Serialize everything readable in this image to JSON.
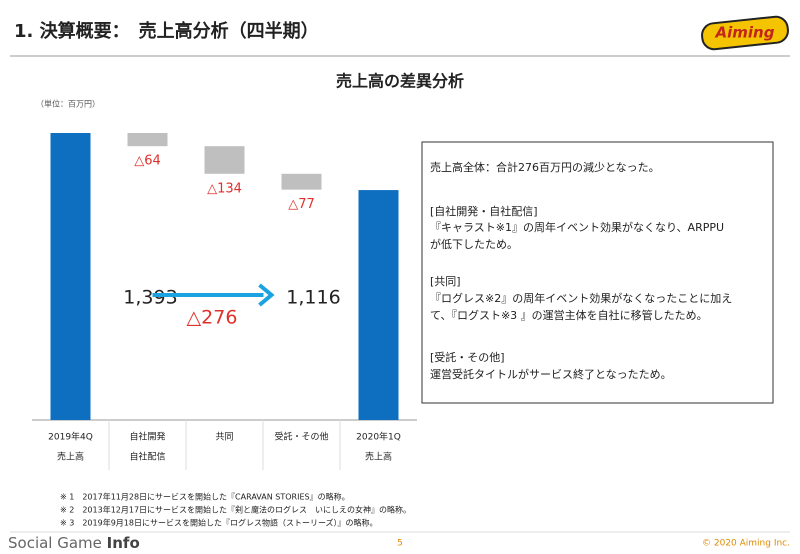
{
  "header": {
    "title": "1. 決算概要：　売上高分析（四半期）",
    "logo": "Aiming"
  },
  "chart_data": {
    "type": "waterfall",
    "title": "売上高の差異分析",
    "unit": "（単位：百万円）",
    "categories": [
      [
        "2019年4Q",
        "売上高"
      ],
      [
        "自社開発",
        "自社配信"
      ],
      [
        "共同"
      ],
      [
        "受託・その他"
      ],
      [
        "2020年1Q",
        "売上高"
      ]
    ],
    "values": [
      1393,
      -64,
      -134,
      -77,
      1116
    ],
    "value_labels": [
      "1,393",
      "△64",
      "△134",
      "△77",
      "1,116"
    ],
    "total_color": "#0e6fc1",
    "delta_color": "#bfbfbf",
    "delta_label_color": "#e0302b",
    "annotation": "△276",
    "arrow_color": "#1aa3e0"
  },
  "notes_box": [
    "売上高全体：合計276百万円の減少となった。",
    "[自社開発・自社配信]",
    "『キャラスト※1』の周年イベント効果がなくなり、ARPPU",
    "が低下したため。",
    "[共同]",
    "『ログレス※2』の周年イベント効果がなくなったことに加え",
    "て、『ログスト※3 』の運営主体を自社に移管したため。",
    "[受託・その他]",
    "運営受託タイトルがサービス終了となったため。"
  ],
  "footnotes": [
    "※ 1　2017年11月28日にサービスを開始した『CARAVAN STORIES』の略称。",
    "※ 2　2013年12月17日にサービスを開始した『剣と魔法のログレス　いにしえの女神』の略称。",
    "※ 3　2019年9月18日にサービスを開始した『ログレス物語（ストーリーズ）』の略称。"
  ],
  "footer": {
    "brand_a": "Social Game ",
    "brand_b": "Info",
    "page": "5",
    "copyright": "© 2020 Aiming Inc."
  }
}
